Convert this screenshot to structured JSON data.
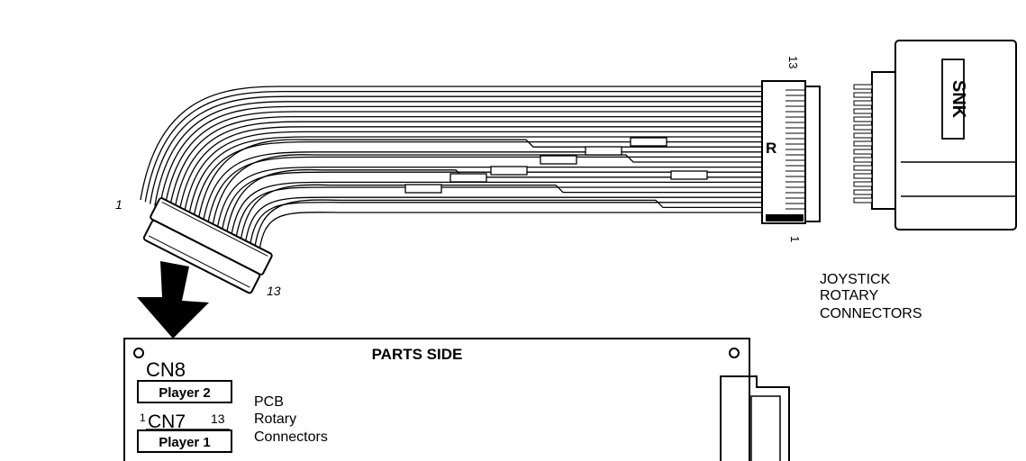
{
  "ribbon_cable": {
    "left_pin_first": "1",
    "left_pin_last": "13",
    "right_pin_first": "1",
    "right_pin_last": "13",
    "right_connector_marker": "R"
  },
  "joystick_connector": {
    "brand_logo_text": "SNK"
  },
  "joystick_label": {
    "line1": "JOYSTICK",
    "line2": "ROTARY",
    "line3": "CONNECTORS"
  },
  "pcb": {
    "side_title": "PARTS SIDE",
    "cn8_label": "CN8",
    "cn8_player": "Player 2",
    "cn7_pin_first": "1",
    "cn7_label": "CN7",
    "cn7_pin_last": "13",
    "cn7_player": "Player 1",
    "rotary_label_line1": "PCB",
    "rotary_label_line2": "Rotary",
    "rotary_label_line3": "Connectors"
  },
  "colors": {
    "line": "#000000",
    "background": "#ffffff"
  }
}
